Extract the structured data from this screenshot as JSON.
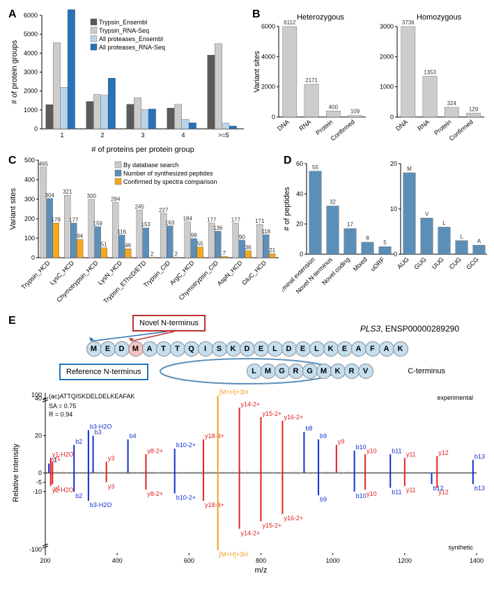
{
  "colors": {
    "gray_dark": "#5a5a5a",
    "gray_light": "#cccccc",
    "blue_light": "#b8d4e8",
    "blue_dark": "#2872b8",
    "blue_med": "#5c8fb8",
    "orange": "#f5a623",
    "red": "#c03030",
    "ion_b": "#1030d0",
    "ion_y": "#e02020",
    "ion_precursor": "#f0a020",
    "ion_other": "#b0b0b0"
  },
  "panelA": {
    "label": "A",
    "xlabel": "# of proteins per protein group",
    "ylabel": "# of protein groups",
    "categories": [
      "1",
      "2",
      "3",
      "4",
      ">=5"
    ],
    "series": [
      {
        "name": "Trypsin_Ensembl",
        "color": "#5a5a5a",
        "values": [
          1280,
          1450,
          1300,
          1100,
          3900
        ]
      },
      {
        "name": "Trypsin_RNA-Seq",
        "color": "#cccccc",
        "values": [
          4550,
          1820,
          1650,
          1300,
          4500
        ]
      },
      {
        "name": "All proteases_Ensembl",
        "color": "#b8d4e8",
        "values": [
          2200,
          1780,
          1020,
          500,
          300
        ]
      },
      {
        "name": "All proteases_RNA-Seq",
        "color": "#2872b8",
        "values": [
          6300,
          2680,
          1050,
          320,
          150
        ]
      }
    ],
    "ylim": [
      0,
      6000
    ],
    "ytick_step": 1000
  },
  "panelB": {
    "label": "B",
    "ylabel": "Variant sites",
    "subpanels": [
      {
        "title": "Heterozygous",
        "categories": [
          "DNA",
          "RNA",
          "Protein",
          "Confirmed"
        ],
        "values": [
          6112,
          2171,
          400,
          109
        ],
        "color": "#cccccc",
        "ylim": [
          0,
          6000
        ],
        "ytick_step": 2000
      },
      {
        "title": "Homozygous",
        "categories": [
          "DNA",
          "RNA",
          "Protein",
          "Confirmed"
        ],
        "values": [
          3736,
          1353,
          324,
          129
        ],
        "color": "#cccccc",
        "ylim": [
          0,
          3000
        ],
        "ytick_step": 1000
      }
    ]
  },
  "panelC": {
    "label": "C",
    "ylabel": "Variant sites",
    "categories": [
      "Trypsin_HCD",
      "LysC_HCD",
      "Chymotrypsin_HCD",
      "LysN_HCD",
      "Trypsin_EThcD/ETD",
      "Trypsin_CID",
      "ArgC_HCD",
      "Chymotrypsin_CID",
      "AspN_HCD",
      "GluC_HCD"
    ],
    "series": [
      {
        "name": "By database search",
        "color": "#cccccc",
        "values": [
          465,
          321,
          300,
          284,
          245,
          227,
          184,
          177,
          177,
          171
        ]
      },
      {
        "name": "Number of synthesized peptides",
        "color": "#5c8fb8",
        "values": [
          304,
          177,
          159,
          116,
          153,
          163,
          98,
          136,
          90,
          118
        ]
      },
      {
        "name": "Confirmed by spectra comparison",
        "color": "#f5a623",
        "values": [
          178,
          94,
          51,
          46,
          2,
          2,
          55,
          7,
          36,
          21
        ]
      }
    ],
    "ylim": [
      0,
      500
    ],
    "ytick_step": 100
  },
  "panelD": {
    "label": "D",
    "ylabel": "# of peptides",
    "subpanels": [
      {
        "categories": [
          "N-terminal\nextension",
          "Novel\nN-terminus",
          "Novel\ncoding",
          "Mixed",
          "uORF"
        ],
        "values": [
          55,
          32,
          17,
          8,
          5
        ],
        "color": "#5c8fb8",
        "ylim": [
          0,
          60
        ],
        "ytick_step": 20
      },
      {
        "categories": [
          "AUG",
          "GUG",
          "UUG",
          "CUG",
          "GCG"
        ],
        "values": [
          18,
          8,
          6,
          3,
          2
        ],
        "above_labels": [
          "M",
          "V",
          "L",
          "L",
          "A"
        ],
        "color": "#5c8fb8",
        "ylim": [
          0,
          20
        ],
        "ytick_step": 10
      }
    ]
  },
  "panelE": {
    "label": "E",
    "gene": "PLS3",
    "ensp": "ENSP00000289290",
    "novel_label": "Novel N-terminus",
    "ref_label": "Reference N-terminus",
    "c_term_label": "C-terminus",
    "sequence": [
      "M",
      "E",
      "D",
      "M",
      "A",
      "T",
      "T",
      "Q",
      "I",
      "S",
      "K",
      "D",
      "E",
      "L",
      "D",
      "E",
      "L",
      "K",
      "E",
      "A",
      "F",
      "A",
      "K"
    ],
    "novel_idx": 3,
    "c_term_seq": [
      "L",
      "M",
      "G",
      "R",
      "G",
      "M",
      "K",
      "R",
      "V"
    ],
    "aa_blue": "#c5dff0",
    "aa_red": "#f5c5c5",
    "spectrum": {
      "title": "(ac)ATTQISKDELDELKEAFAK",
      "sa": "SA  =  0.75",
      "r": "R  =  0.94",
      "top_label": "experimental",
      "bottom_label": "synthetic",
      "xlabel": "m/z",
      "ylabel": "Relative Intensity",
      "xlim": [
        200,
        1400
      ],
      "xtick_step": 200,
      "peaks_top": [
        {
          "mz": 210,
          "int": 5,
          "lab": "b1",
          "col": "b"
        },
        {
          "mz": 215,
          "int": 8,
          "lab": "y1-H2O",
          "col": "y"
        },
        {
          "mz": 220,
          "int": 6,
          "lab": "y1",
          "col": "y"
        },
        {
          "mz": 280,
          "int": 15,
          "lab": "b2",
          "col": "b"
        },
        {
          "mz": 320,
          "int": 23,
          "lab": "b3-H2O",
          "col": "b"
        },
        {
          "mz": 333,
          "int": 20,
          "lab": "b3",
          "col": "b"
        },
        {
          "mz": 370,
          "int": 6,
          "lab": "y3",
          "col": "y"
        },
        {
          "mz": 430,
          "int": 18,
          "lab": "b4",
          "col": "b"
        },
        {
          "mz": 480,
          "int": 10,
          "lab": "y8-2+",
          "col": "y"
        },
        {
          "mz": 560,
          "int": 13,
          "lab": "b10-2+",
          "col": "b"
        },
        {
          "mz": 640,
          "int": 18,
          "lab": "y18-3+",
          "col": "y"
        },
        {
          "mz": 680,
          "int": 100,
          "lab": "[M+H]+3H",
          "col": "p"
        },
        {
          "mz": 740,
          "int": 35,
          "lab": "y14-2+",
          "col": "y"
        },
        {
          "mz": 800,
          "int": 30,
          "lab": "y15-2+",
          "col": "y"
        },
        {
          "mz": 860,
          "int": 28,
          "lab": "y16-2+",
          "col": "y"
        },
        {
          "mz": 920,
          "int": 22,
          "lab": "b8",
          "col": "b"
        },
        {
          "mz": 960,
          "int": 18,
          "lab": "b9",
          "col": "b"
        },
        {
          "mz": 1010,
          "int": 15,
          "lab": "y9",
          "col": "y"
        },
        {
          "mz": 1060,
          "int": 12,
          "lab": "b10",
          "col": "b"
        },
        {
          "mz": 1090,
          "int": 10,
          "lab": "y10",
          "col": "y"
        },
        {
          "mz": 1160,
          "int": 10,
          "lab": "b11",
          "col": "b"
        },
        {
          "mz": 1200,
          "int": 8,
          "lab": "y11",
          "col": "y"
        },
        {
          "mz": 1290,
          "int": 9,
          "lab": "y12",
          "col": "y"
        },
        {
          "mz": 1390,
          "int": 7,
          "lab": "b13",
          "col": "b"
        }
      ],
      "peaks_bottom": [
        {
          "mz": 215,
          "int": 7,
          "lab": "y1-H2O",
          "col": "y"
        },
        {
          "mz": 220,
          "int": 6,
          "lab": "y1",
          "col": "y"
        },
        {
          "mz": 280,
          "int": 10,
          "lab": "b2",
          "col": "b"
        },
        {
          "mz": 320,
          "int": 15,
          "lab": "b3-H2O",
          "col": "b"
        },
        {
          "mz": 370,
          "int": 5,
          "lab": "y3",
          "col": "y"
        },
        {
          "mz": 480,
          "int": 9,
          "lab": "y8-2+",
          "col": "y"
        },
        {
          "mz": 560,
          "int": 11,
          "lab": "b10-2+",
          "col": "b"
        },
        {
          "mz": 640,
          "int": 15,
          "lab": "y18-3+",
          "col": "y"
        },
        {
          "mz": 680,
          "int": 100,
          "lab": "[M+H]+3H",
          "col": "p"
        },
        {
          "mz": 740,
          "int": 30,
          "lab": "y14-2+",
          "col": "y"
        },
        {
          "mz": 800,
          "int": 26,
          "lab": "y15-2+",
          "col": "y"
        },
        {
          "mz": 860,
          "int": 22,
          "lab": "y16-2+",
          "col": "y"
        },
        {
          "mz": 960,
          "int": 12,
          "lab": "b9",
          "col": "b"
        },
        {
          "mz": 1060,
          "int": 10,
          "lab": "b10",
          "col": "b"
        },
        {
          "mz": 1090,
          "int": 9,
          "lab": "y10",
          "col": "y"
        },
        {
          "mz": 1160,
          "int": 8,
          "lab": "b11",
          "col": "b"
        },
        {
          "mz": 1200,
          "int": 7,
          "lab": "y11",
          "col": "y"
        },
        {
          "mz": 1275,
          "int": 6,
          "lab": "b12",
          "col": "b"
        },
        {
          "mz": 1290,
          "int": 8,
          "lab": "y12",
          "col": "y"
        },
        {
          "mz": 1390,
          "int": 6,
          "lab": "b13",
          "col": "b"
        }
      ]
    }
  }
}
